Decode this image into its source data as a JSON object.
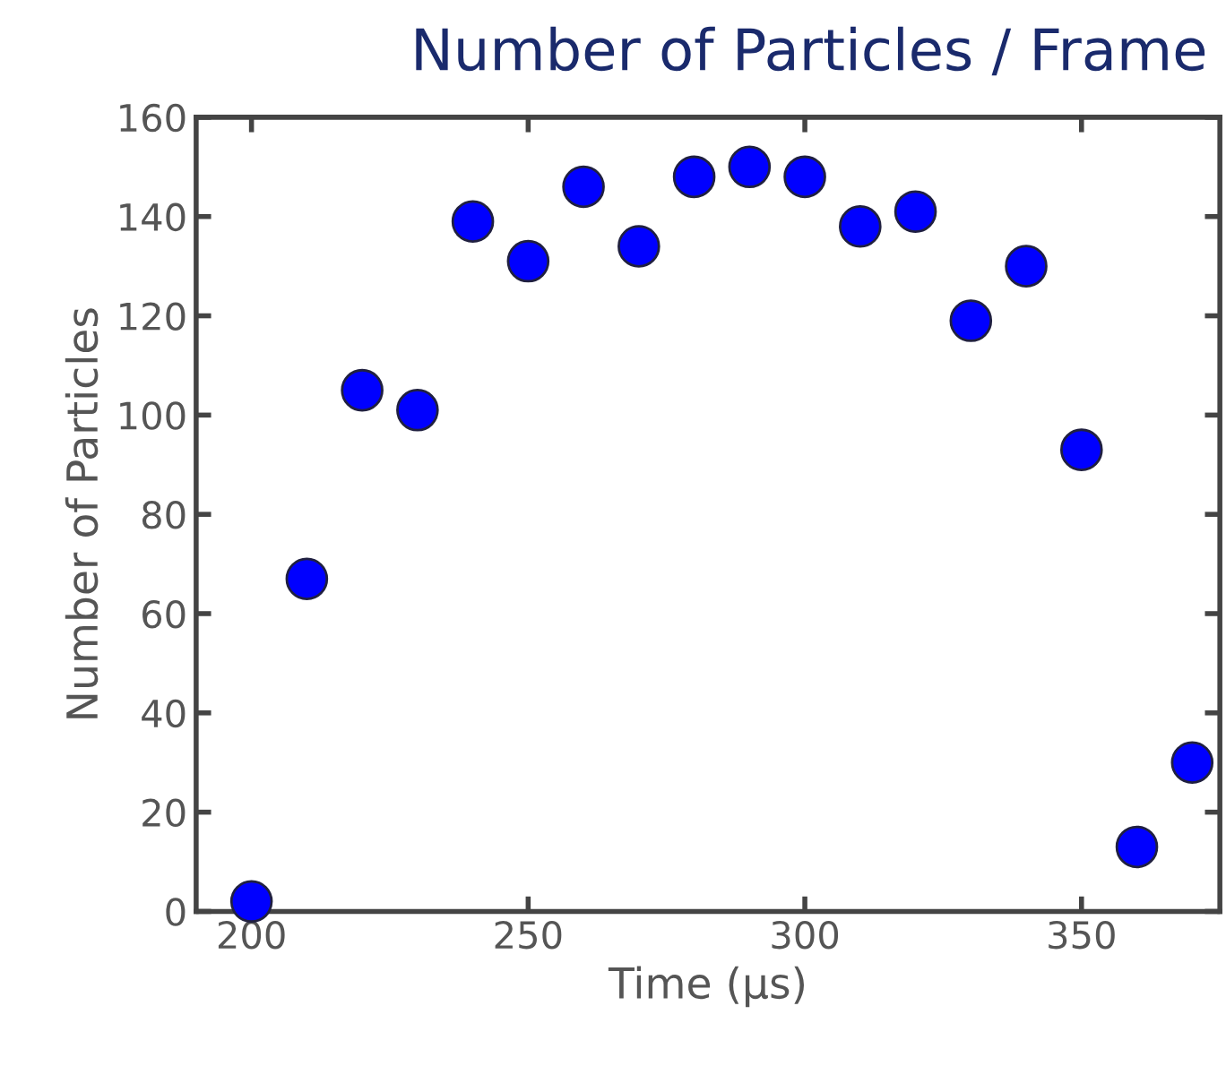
{
  "chart_data": {
    "type": "scatter",
    "title": "Number of Particles / Frame",
    "xlabel": "Time (μs)",
    "ylabel": "Number of Particles",
    "x": [
      200,
      210,
      220,
      230,
      240,
      250,
      260,
      270,
      280,
      290,
      300,
      310,
      320,
      330,
      340,
      350,
      360,
      370
    ],
    "series": [
      {
        "color": "#0000ff",
        "values": [
          2,
          67,
          105,
          101,
          139,
          131,
          146,
          134,
          148,
          150,
          148,
          138,
          141,
          119,
          130,
          93,
          13,
          30
        ]
      }
    ],
    "xlim": [
      190,
      375
    ],
    "ylim": [
      0,
      160
    ],
    "xticks": [
      200,
      250,
      300,
      350
    ],
    "yticks": [
      0,
      20,
      40,
      60,
      80,
      100,
      120,
      140,
      160
    ],
    "marker": "circle",
    "grid": false,
    "legend": false
  }
}
